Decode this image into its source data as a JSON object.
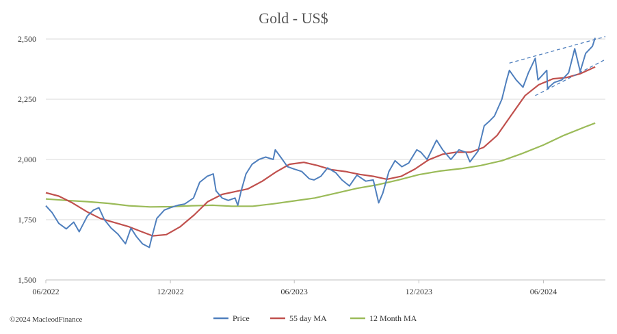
{
  "chart_data": {
    "type": "line",
    "title": "Gold - US$",
    "xlabel": "",
    "ylabel": "",
    "x_ticks": [
      "06/2022",
      "12/2022",
      "06/2023",
      "12/2023",
      "06/2024"
    ],
    "y_ticks": [
      1500,
      1750,
      2000,
      2250,
      2500
    ],
    "y_tick_labels": [
      "1,500",
      "1,750",
      "2,000",
      "2,250",
      "2,500"
    ],
    "ylim": [
      1500,
      2500
    ],
    "xlim": [
      "2022-06-01",
      "2024-08-31"
    ],
    "grid": "horizontal",
    "legend_position": "bottom",
    "series": [
      {
        "name": "Price",
        "color": "#4f7fbd",
        "points": [
          [
            "2022-06-01",
            1808
          ],
          [
            "2022-06-10",
            1780
          ],
          [
            "2022-06-20",
            1735
          ],
          [
            "2022-07-01",
            1712
          ],
          [
            "2022-07-12",
            1740
          ],
          [
            "2022-07-20",
            1700
          ],
          [
            "2022-08-01",
            1765
          ],
          [
            "2022-08-10",
            1790
          ],
          [
            "2022-08-18",
            1800
          ],
          [
            "2022-08-26",
            1750
          ],
          [
            "2022-09-05",
            1715
          ],
          [
            "2022-09-15",
            1690
          ],
          [
            "2022-09-26",
            1650
          ],
          [
            "2022-10-04",
            1715
          ],
          [
            "2022-10-12",
            1680
          ],
          [
            "2022-10-21",
            1650
          ],
          [
            "2022-10-31",
            1635
          ],
          [
            "2022-11-04",
            1680
          ],
          [
            "2022-11-11",
            1755
          ],
          [
            "2022-11-22",
            1790
          ],
          [
            "2022-12-01",
            1800
          ],
          [
            "2022-12-12",
            1810
          ],
          [
            "2022-12-22",
            1815
          ],
          [
            "2023-01-04",
            1840
          ],
          [
            "2023-01-13",
            1905
          ],
          [
            "2023-01-24",
            1930
          ],
          [
            "2023-02-02",
            1940
          ],
          [
            "2023-02-06",
            1870
          ],
          [
            "2023-02-15",
            1840
          ],
          [
            "2023-02-24",
            1830
          ],
          [
            "2023-03-06",
            1840
          ],
          [
            "2023-03-10",
            1810
          ],
          [
            "2023-03-15",
            1870
          ],
          [
            "2023-03-22",
            1940
          ],
          [
            "2023-03-31",
            1980
          ],
          [
            "2023-04-10",
            2000
          ],
          [
            "2023-04-20",
            2010
          ],
          [
            "2023-05-01",
            2000
          ],
          [
            "2023-05-04",
            2040
          ],
          [
            "2023-05-12",
            2010
          ],
          [
            "2023-05-22",
            1970
          ],
          [
            "2023-06-01",
            1960
          ],
          [
            "2023-06-12",
            1950
          ],
          [
            "2023-06-23",
            1920
          ],
          [
            "2023-06-30",
            1915
          ],
          [
            "2023-07-10",
            1930
          ],
          [
            "2023-07-20",
            1965
          ],
          [
            "2023-08-01",
            1945
          ],
          [
            "2023-08-10",
            1915
          ],
          [
            "2023-08-21",
            1890
          ],
          [
            "2023-09-01",
            1935
          ],
          [
            "2023-09-14",
            1910
          ],
          [
            "2023-09-25",
            1915
          ],
          [
            "2023-10-03",
            1820
          ],
          [
            "2023-10-09",
            1860
          ],
          [
            "2023-10-18",
            1950
          ],
          [
            "2023-10-27",
            1995
          ],
          [
            "2023-11-06",
            1970
          ],
          [
            "2023-11-16",
            1985
          ],
          [
            "2023-11-28",
            2040
          ],
          [
            "2023-12-04",
            2030
          ],
          [
            "2023-12-13",
            2000
          ],
          [
            "2023-12-27",
            2080
          ],
          [
            "2024-01-05",
            2040
          ],
          [
            "2024-01-17",
            2000
          ],
          [
            "2024-01-29",
            2040
          ],
          [
            "2024-02-08",
            2030
          ],
          [
            "2024-02-14",
            1990
          ],
          [
            "2024-02-26",
            2035
          ],
          [
            "2024-03-06",
            2140
          ],
          [
            "2024-03-14",
            2160
          ],
          [
            "2024-03-21",
            2180
          ],
          [
            "2024-04-01",
            2250
          ],
          [
            "2024-04-08",
            2330
          ],
          [
            "2024-04-12",
            2370
          ],
          [
            "2024-04-22",
            2330
          ],
          [
            "2024-05-02",
            2300
          ],
          [
            "2024-05-10",
            2360
          ],
          [
            "2024-05-20",
            2420
          ],
          [
            "2024-05-24",
            2330
          ],
          [
            "2024-06-06",
            2370
          ],
          [
            "2024-06-07",
            2295
          ],
          [
            "2024-06-17",
            2320
          ],
          [
            "2024-06-28",
            2330
          ],
          [
            "2024-07-08",
            2360
          ],
          [
            "2024-07-17",
            2460
          ],
          [
            "2024-07-25",
            2365
          ],
          [
            "2024-08-02",
            2440
          ],
          [
            "2024-08-12",
            2470
          ],
          [
            "2024-08-16",
            2505
          ]
        ]
      },
      {
        "name": "55 day MA",
        "color": "#c0504d",
        "points": [
          [
            "2022-06-01",
            1862
          ],
          [
            "2022-06-20",
            1848
          ],
          [
            "2022-07-10",
            1820
          ],
          [
            "2022-08-01",
            1782
          ],
          [
            "2022-08-20",
            1755
          ],
          [
            "2022-09-10",
            1738
          ],
          [
            "2022-09-30",
            1722
          ],
          [
            "2022-10-20",
            1700
          ],
          [
            "2022-11-05",
            1683
          ],
          [
            "2022-11-25",
            1688
          ],
          [
            "2022-12-15",
            1720
          ],
          [
            "2023-01-05",
            1770
          ],
          [
            "2023-01-25",
            1825
          ],
          [
            "2023-02-15",
            1855
          ],
          [
            "2023-03-05",
            1866
          ],
          [
            "2023-03-25",
            1878
          ],
          [
            "2023-04-15",
            1910
          ],
          [
            "2023-05-05",
            1948
          ],
          [
            "2023-05-25",
            1980
          ],
          [
            "2023-06-15",
            1988
          ],
          [
            "2023-07-05",
            1975
          ],
          [
            "2023-07-25",
            1958
          ],
          [
            "2023-08-15",
            1950
          ],
          [
            "2023-09-05",
            1938
          ],
          [
            "2023-09-25",
            1930
          ],
          [
            "2023-10-15",
            1918
          ],
          [
            "2023-11-05",
            1930
          ],
          [
            "2023-11-25",
            1960
          ],
          [
            "2023-12-15",
            1998
          ],
          [
            "2024-01-05",
            2022
          ],
          [
            "2024-01-25",
            2030
          ],
          [
            "2024-02-15",
            2030
          ],
          [
            "2024-03-05",
            2050
          ],
          [
            "2024-03-25",
            2100
          ],
          [
            "2024-04-15",
            2185
          ],
          [
            "2024-05-05",
            2265
          ],
          [
            "2024-05-25",
            2310
          ],
          [
            "2024-06-15",
            2335
          ],
          [
            "2024-07-05",
            2340
          ],
          [
            "2024-07-25",
            2356
          ],
          [
            "2024-08-16",
            2384
          ]
        ]
      },
      {
        "name": "12 Month MA",
        "color": "#9bbb59",
        "points": [
          [
            "2022-06-01",
            1836
          ],
          [
            "2022-07-01",
            1830
          ],
          [
            "2022-08-01",
            1825
          ],
          [
            "2022-09-01",
            1818
          ],
          [
            "2022-10-01",
            1808
          ],
          [
            "2022-11-01",
            1803
          ],
          [
            "2022-12-01",
            1804
          ],
          [
            "2023-01-01",
            1808
          ],
          [
            "2023-02-01",
            1810
          ],
          [
            "2023-03-01",
            1806
          ],
          [
            "2023-04-01",
            1806
          ],
          [
            "2023-05-01",
            1816
          ],
          [
            "2023-06-01",
            1828
          ],
          [
            "2023-07-01",
            1840
          ],
          [
            "2023-08-01",
            1860
          ],
          [
            "2023-09-01",
            1880
          ],
          [
            "2023-10-01",
            1895
          ],
          [
            "2023-11-01",
            1915
          ],
          [
            "2023-12-01",
            1937
          ],
          [
            "2024-01-01",
            1952
          ],
          [
            "2024-02-01",
            1962
          ],
          [
            "2024-03-01",
            1975
          ],
          [
            "2024-04-01",
            1995
          ],
          [
            "2024-05-01",
            2025
          ],
          [
            "2024-06-01",
            2060
          ],
          [
            "2024-07-01",
            2100
          ],
          [
            "2024-08-01",
            2135
          ],
          [
            "2024-08-16",
            2151
          ]
        ]
      }
    ],
    "annotations": [
      {
        "name": "upper-trendline",
        "color": "#4f7fbd",
        "style": "dashed",
        "from": [
          "2024-04-12",
          2400
        ],
        "to": [
          "2024-08-31",
          2510
        ]
      },
      {
        "name": "lower-trendline",
        "color": "#4f7fbd",
        "style": "dashed",
        "from": [
          "2024-05-20",
          2265
        ],
        "to": [
          "2024-08-31",
          2415
        ]
      }
    ]
  },
  "copyright": "©2024 MacleodFinance"
}
